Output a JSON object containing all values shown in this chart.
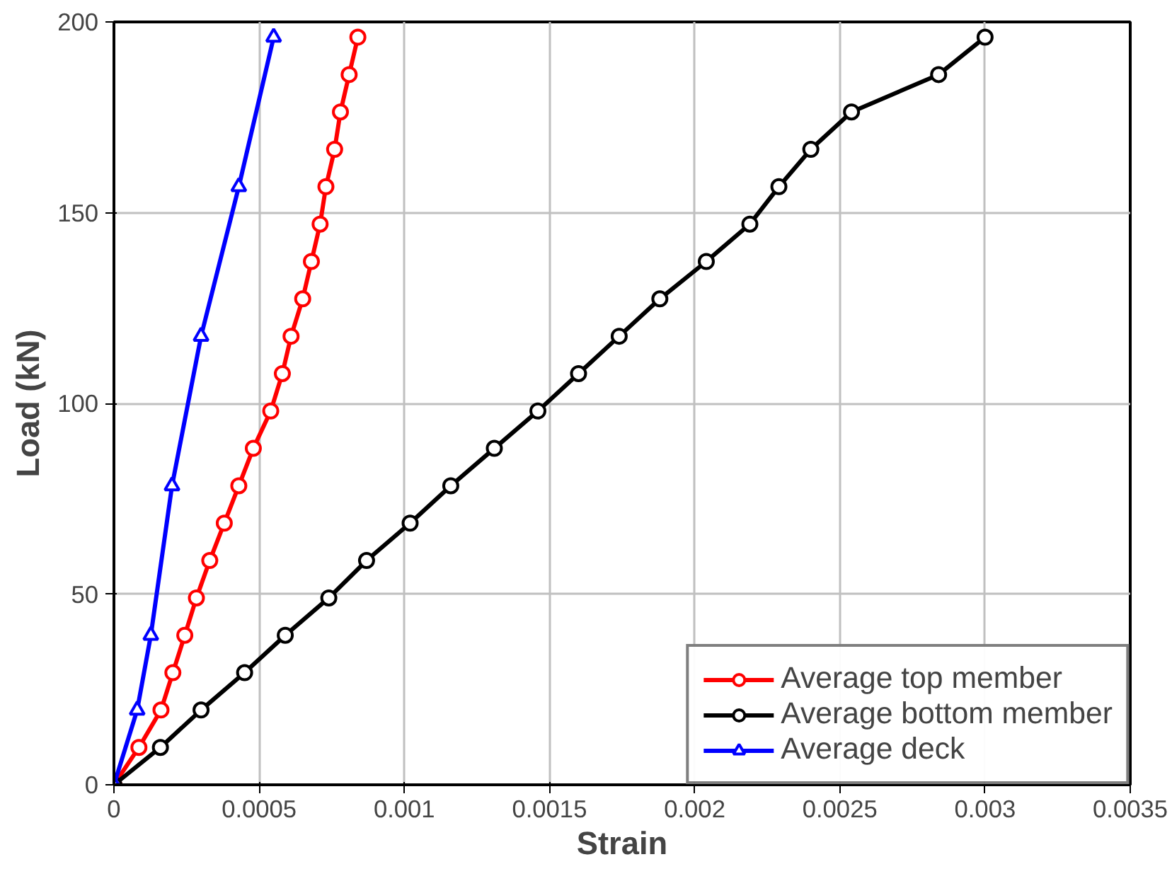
{
  "chart_data": {
    "type": "line",
    "xlabel": "Strain",
    "ylabel": "Load (kN)",
    "xlim": [
      0,
      0.0035
    ],
    "ylim": [
      0,
      200
    ],
    "xticks": [
      0,
      0.0005,
      0.001,
      0.0015,
      0.002,
      0.0025,
      0.003,
      0.0035
    ],
    "yticks": [
      0,
      50,
      100,
      150,
      200
    ],
    "grid": true,
    "legend": "bottom right",
    "line_style": "solid",
    "series": [
      {
        "name": "Average top member",
        "color": "#ff0000",
        "marker": "circle",
        "x": [
          0,
          8.6e-05,
          0.000162,
          0.000203,
          0.000244,
          0.000284,
          0.00033,
          0.00038,
          0.00043,
          0.00048,
          0.00054,
          0.00058,
          0.00061,
          0.00065,
          0.00068,
          0.00071,
          0.00073,
          0.00076,
          0.00078,
          0.00081,
          0.00084
        ],
        "values": [
          0,
          9.8,
          19.6,
          29.4,
          39.2,
          49,
          58.8,
          68.6,
          78.4,
          88.2,
          98,
          107.8,
          117.6,
          127.4,
          137.2,
          147,
          156.8,
          166.6,
          176.4,
          186.2,
          196
        ]
      },
      {
        "name": "Average bottom member",
        "color": "#000000",
        "marker": "circle",
        "x": [
          0,
          0.00016,
          0.0003,
          0.00045,
          0.00059,
          0.00074,
          0.00087,
          0.00102,
          0.00116,
          0.00131,
          0.00146,
          0.0016,
          0.00174,
          0.00188,
          0.00204,
          0.00219,
          0.00229,
          0.0024,
          0.00254,
          0.00284,
          0.003
        ],
        "values": [
          0,
          9.8,
          19.6,
          29.4,
          39.2,
          49,
          58.8,
          68.6,
          78.4,
          88.2,
          98,
          107.8,
          117.6,
          127.4,
          137.2,
          147,
          156.8,
          166.6,
          176.4,
          186.2,
          196
        ]
      },
      {
        "name": "Average deck",
        "color": "#0000ff",
        "marker": "triangle",
        "x": [
          0,
          8e-05,
          0.000127,
          0.0002,
          0.0003,
          0.00043,
          0.00055
        ],
        "values": [
          0,
          19.6,
          39.2,
          78.4,
          117.6,
          156.8,
          196
        ]
      }
    ]
  }
}
